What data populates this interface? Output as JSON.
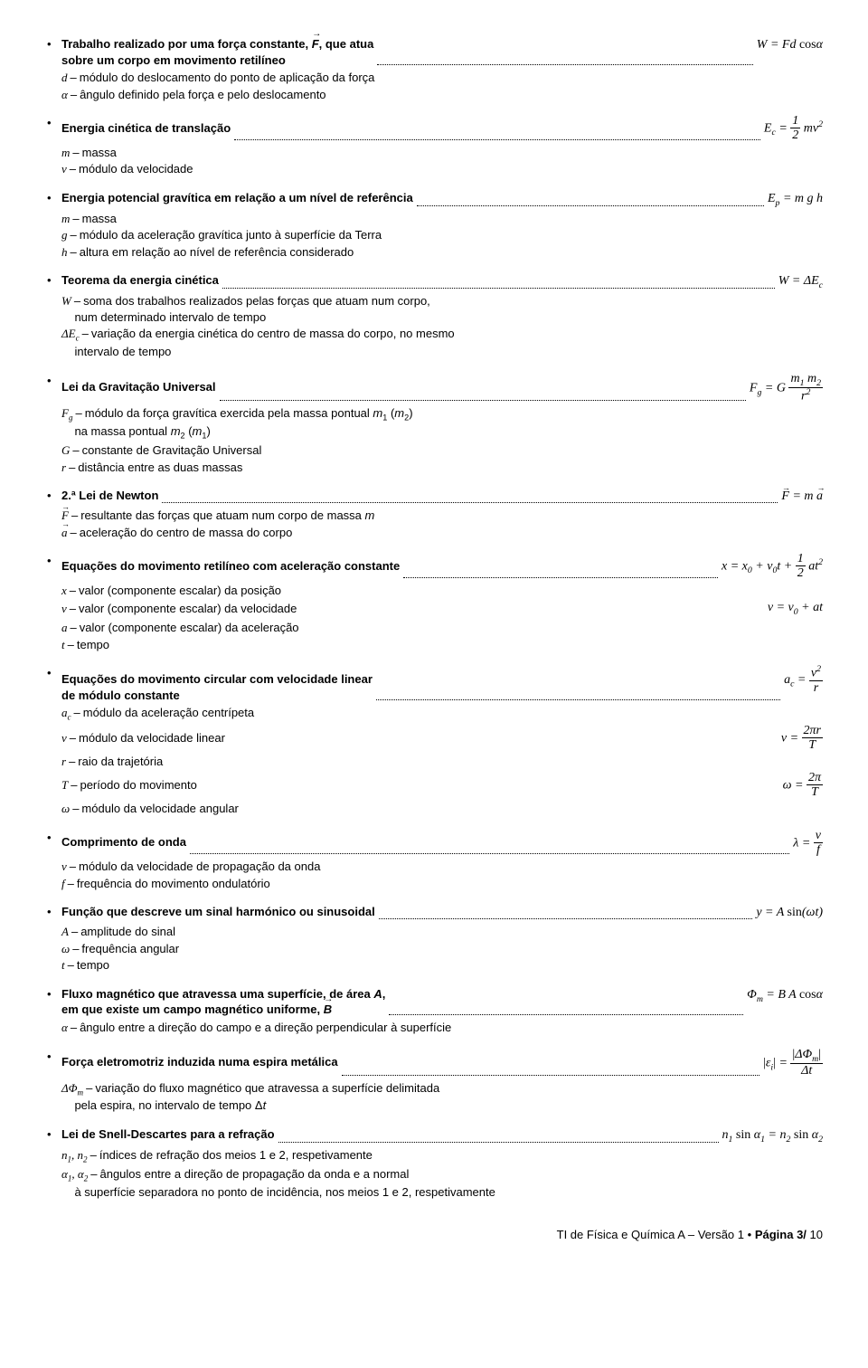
{
  "items": [
    {
      "title_html": "Trabalho realizado por uma força constante, <span class='vec'>F</span>, que atua<br>sobre um corpo em movimento retilíneo",
      "formula_html": "W = Fd <span class='rm'>cos</span>α",
      "defs": [
        {
          "sym": "d",
          "text": "módulo do deslocamento do ponto de aplicação da força"
        },
        {
          "sym": "α",
          "text": "ângulo definido pela força e pelo deslocamento"
        }
      ]
    },
    {
      "title_html": "Energia cinética de translação",
      "formula_html": "E<sub>c</sub> = <span class='frac'><span class='num'>1</span><span class='den'>2</span></span> mv<sup>2</sup>",
      "defs": [
        {
          "sym": "m",
          "text": "massa"
        },
        {
          "sym": "v",
          "text": "módulo da velocidade"
        }
      ]
    },
    {
      "title_html": "Energia potencial gravítica em relação a um nível de referência",
      "formula_html": "E<sub>p</sub> = m g h",
      "defs": [
        {
          "sym": "m",
          "text": "massa"
        },
        {
          "sym": "g",
          "text": "módulo da aceleração gravítica junto à superfície da Terra"
        },
        {
          "sym": "h",
          "text": "altura em relação ao nível de referência considerado"
        }
      ]
    },
    {
      "title_html": "Teorema da energia cinética",
      "formula_html": "W = ΔE<sub>c</sub>",
      "defs": [
        {
          "sym": "W",
          "text": "soma dos trabalhos realizados pelas forças que atuam num corpo,<br>&nbsp;&nbsp;&nbsp;&nbsp;num determinado intervalo de tempo"
        },
        {
          "sym": "ΔE<sub>c</sub>",
          "text": "variação da energia cinética do centro de massa do corpo, no mesmo<br>&nbsp;&nbsp;&nbsp;&nbsp;intervalo de tempo"
        }
      ]
    },
    {
      "title_html": "Lei da Gravitação Universal",
      "formula_html": "F<sub>g</sub> = G <span class='frac'><span class='num'>m<sub>1</sub> m<sub>2</sub></span><span class='den'>r<sup>2</sup></span></span>",
      "defs": [
        {
          "sym": "F<sub>g</sub>",
          "text": "módulo da força gravítica exercida pela massa pontual <i>m</i><sub>1</sub> (<i>m</i><sub>2</sub>)<br>&nbsp;&nbsp;&nbsp;&nbsp;na massa pontual <i>m</i><sub>2</sub> (<i>m</i><sub>1</sub>)"
        },
        {
          "sym": "G",
          "text": "constante de Gravitação Universal"
        },
        {
          "sym": "r",
          "text": "distância entre as duas massas"
        }
      ]
    },
    {
      "title_html": "2.ª Lei de Newton",
      "formula_html": "<span class='vecf'>F</span> = m <span class='vecf'>a</span>",
      "defs": [
        {
          "sym_vec": true,
          "sym": "F",
          "text": "resultante das forças que atuam num corpo de massa <i>m</i>"
        },
        {
          "sym_vec": true,
          "sym": "a",
          "text": "aceleração do centro de massa do corpo"
        }
      ]
    },
    {
      "title_html": "Equações do movimento retilíneo com aceleração constante",
      "formula_html": "x = x<sub>0</sub> + v<sub>0</sub>t + <span class='frac'><span class='num'>1</span><span class='den'>2</span></span> at<sup>2</sup>",
      "defs": [
        {
          "sym": "x",
          "text": "valor (componente escalar) da posição"
        },
        {
          "sym": "v",
          "text": "valor (componente escalar) da velocidade",
          "extra_eq": "v = v<sub>0</sub> + at"
        },
        {
          "sym": "a",
          "text": "valor (componente escalar) da aceleração"
        },
        {
          "sym": "t",
          "text": "tempo"
        }
      ]
    },
    {
      "title_html": "Equações do movimento circular com velocidade linear<br>de módulo constante",
      "formula_html": "a<sub>c</sub> = <span class='frac'><span class='num'>v<sup>2</sup></span><span class='den'>r</span></span>",
      "defs": [
        {
          "sym": "a<sub>c</sub>",
          "text": "módulo da aceleração centrípeta"
        },
        {
          "sym": "v",
          "text": "módulo da velocidade linear",
          "extra_eq": "v = <span class='frac'><span class='num'>2πr</span><span class='den'>T</span></span>"
        },
        {
          "sym": "r",
          "text": "raio da trajetória"
        },
        {
          "sym": "T",
          "text": "período do movimento",
          "extra_eq": "ω = <span class='frac'><span class='num'>2π</span><span class='den'>T</span></span>"
        },
        {
          "sym": "ω",
          "text": "módulo da velocidade angular"
        }
      ]
    },
    {
      "title_html": "Comprimento de onda",
      "formula_html": "λ = <span class='frac'><span class='num'>v</span><span class='den'>f</span></span>",
      "defs": [
        {
          "sym": "v",
          "text": "módulo da velocidade de propagação da onda"
        },
        {
          "sym": "f",
          "text": "frequência do movimento ondulatório"
        }
      ]
    },
    {
      "title_html": "Função que descreve um sinal harmónico ou sinusoidal",
      "formula_html": "y = A <span class='rm'>sin</span>(ωt)",
      "defs": [
        {
          "sym": "A",
          "text": "amplitude do sinal"
        },
        {
          "sym": "ω",
          "text": "frequência angular"
        },
        {
          "sym": "t",
          "text": "tempo"
        }
      ]
    },
    {
      "title_html": "Fluxo magnético que atravessa uma superfície, de área <i>A</i>,<br>em que existe um campo magnético uniforme, <span class='vec'>B</span>",
      "formula_html": "Φ<sub>m</sub> = B A <span class='rm'>cos</span>α",
      "defs": [
        {
          "sym": "α",
          "text": "ângulo entre a direção do campo e a direção perpendicular à superfície"
        }
      ]
    },
    {
      "title_html": "Força eletromotriz induzida numa espira metálica",
      "formula_html": "<span class='abs'>|</span>ε<sub>i</sub><span class='abs'>|</span> = <span class='frac'><span class='num'><span class='abs'>|</span>ΔΦ<sub>m</sub><span class='abs'>|</span></span><span class='den'>Δt</span></span>",
      "defs": [
        {
          "sym": "ΔΦ<sub>m</sub>",
          "text": "variação do fluxo magnético que atravessa a superfície delimitada<br>&nbsp;&nbsp;&nbsp;&nbsp;pela espira, no intervalo de tempo Δ<i>t</i>"
        }
      ]
    },
    {
      "title_html": "Lei de Snell-Descartes para a refração",
      "formula_html": "n<sub>1</sub> <span class='rm'>sin</span> α<sub>1</sub> = n<sub>2</sub> <span class='rm'>sin</span> α<sub>2</sub>",
      "defs": [
        {
          "sym": "n<sub>1</sub>, n<sub>2</sub>",
          "text": "índices de refração dos meios 1 e 2, respetivamente"
        },
        {
          "sym": "α<sub>1</sub>, α<sub>2</sub>",
          "text": "ângulos entre a direção de propagação da onda e a normal<br>&nbsp;&nbsp;&nbsp;&nbsp;à superfície separadora no ponto de incidência, nos meios 1 e 2, respetivamente"
        }
      ]
    }
  ],
  "footer": {
    "left": "TI de Física e Química A – Versão 1",
    "dot": "•",
    "page_label": "Página 3/",
    "total": "10"
  }
}
